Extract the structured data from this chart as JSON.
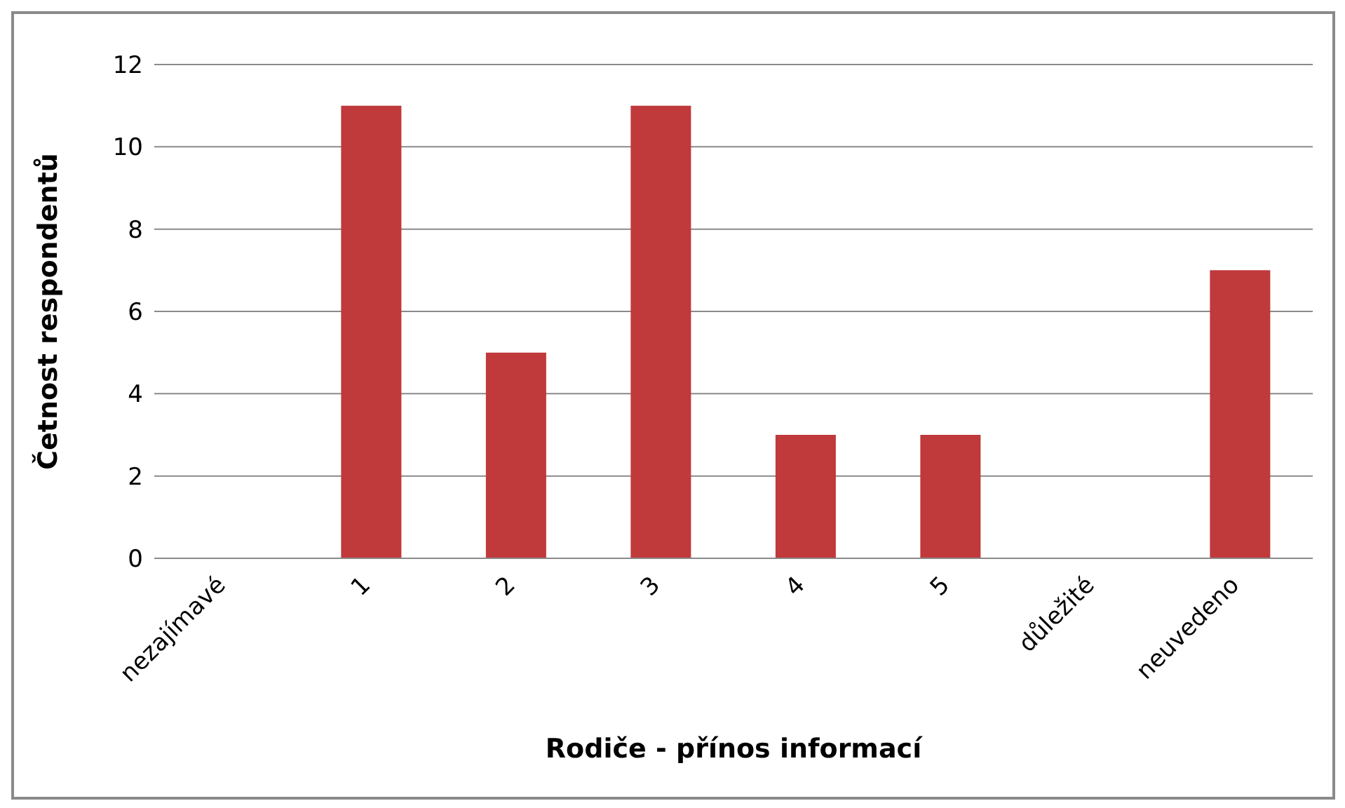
{
  "chart_data": {
    "type": "bar",
    "categories": [
      "nezajímavé",
      "1",
      "2",
      "3",
      "4",
      "5",
      "důležité",
      "neuvedeno"
    ],
    "values": [
      0,
      11,
      5,
      11,
      3,
      3,
      0,
      7
    ],
    "color": "#c0393b",
    "xlabel": "Rodiče - přínos informací",
    "ylabel": "Četnost respondentů",
    "ylim": [
      0,
      12
    ],
    "yticks": [
      0,
      2,
      4,
      6,
      8,
      10,
      12
    ],
    "grid": "y"
  }
}
